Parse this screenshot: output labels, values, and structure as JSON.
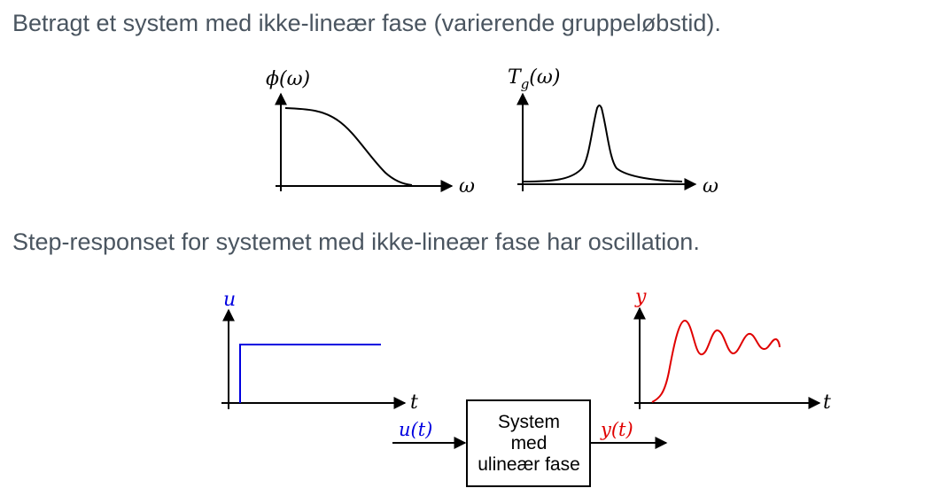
{
  "captions": {
    "nonlinear_phase": "Betragt et system med ikke-lineær fase (varierende gruppeløbstid).",
    "step_response": "Step-responset for systemet med ikke-lineær fase har oscillation."
  },
  "phase_plot": {
    "y_label": "ϕ(ω)",
    "x_label": "ω"
  },
  "group_delay_plot": {
    "y_label_main": "T",
    "y_label_sub": "g",
    "y_label_arg": "(ω)",
    "x_label": "ω"
  },
  "input_plot": {
    "y_label": "u",
    "x_label": "t"
  },
  "output_plot": {
    "y_label": "y",
    "x_label": "t"
  },
  "system_block": {
    "lines": [
      "System",
      "med",
      "ulineær fase"
    ],
    "input_label": "u(t)",
    "output_label": "y(t)"
  },
  "colors": {
    "text": "#4a5560",
    "input": "#0000e0",
    "output": "#e00000",
    "axis": "#000000"
  }
}
